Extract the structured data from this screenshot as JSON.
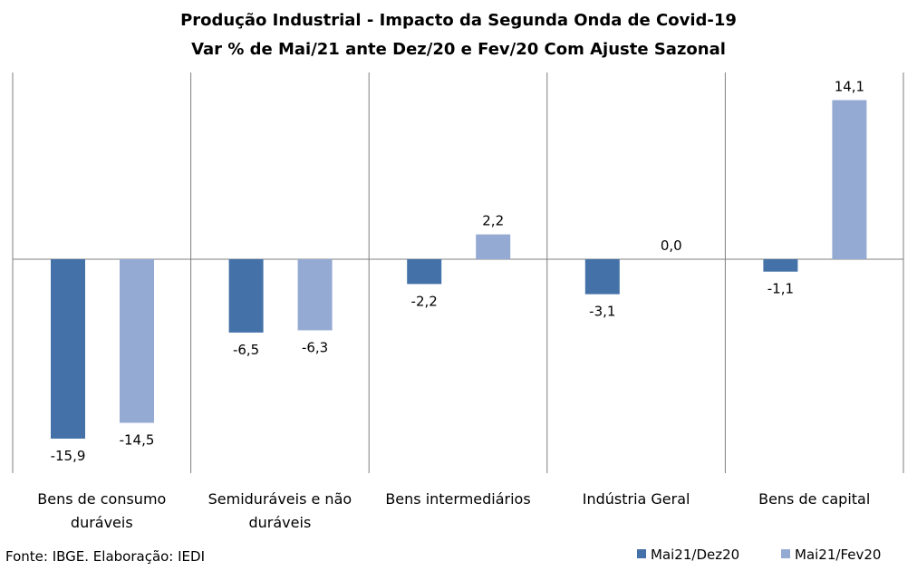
{
  "chart_data": {
    "type": "bar",
    "title": "Produção Industrial - Impacto da Segunda Onda de Covid-19",
    "subtitle": "Var % de Mai/21 ante Dez/20 e Fev/20 Com Ajuste Sazonal",
    "categories": [
      [
        "Bens de consumo",
        "duráveis"
      ],
      [
        "Semiduráveis e não",
        "duráveis"
      ],
      [
        "Bens intermediários"
      ],
      [
        "Indústria Geral"
      ],
      [
        "Bens de capital"
      ]
    ],
    "series": [
      {
        "name": "Mai21/Dez20",
        "color": "#4472a8",
        "values": [
          -15.9,
          -6.5,
          -2.2,
          -3.1,
          -1.1
        ],
        "labels": [
          "-15,9",
          "-6,5",
          "-2,2",
          "-3,1",
          "-1,1"
        ]
      },
      {
        "name": "Mai21/Fev20",
        "color": "#95aad3",
        "values": [
          -14.5,
          -6.3,
          2.2,
          0.0,
          14.1
        ],
        "labels": [
          "-14,5",
          "-6,3",
          "2,2",
          "0,0",
          "14,1"
        ]
      }
    ],
    "ylim": [
      -16,
      14.1
    ],
    "grid": false,
    "legend": "bottom-right",
    "source_note": "Fonte: IBGE. Elaboração: IEDI"
  }
}
